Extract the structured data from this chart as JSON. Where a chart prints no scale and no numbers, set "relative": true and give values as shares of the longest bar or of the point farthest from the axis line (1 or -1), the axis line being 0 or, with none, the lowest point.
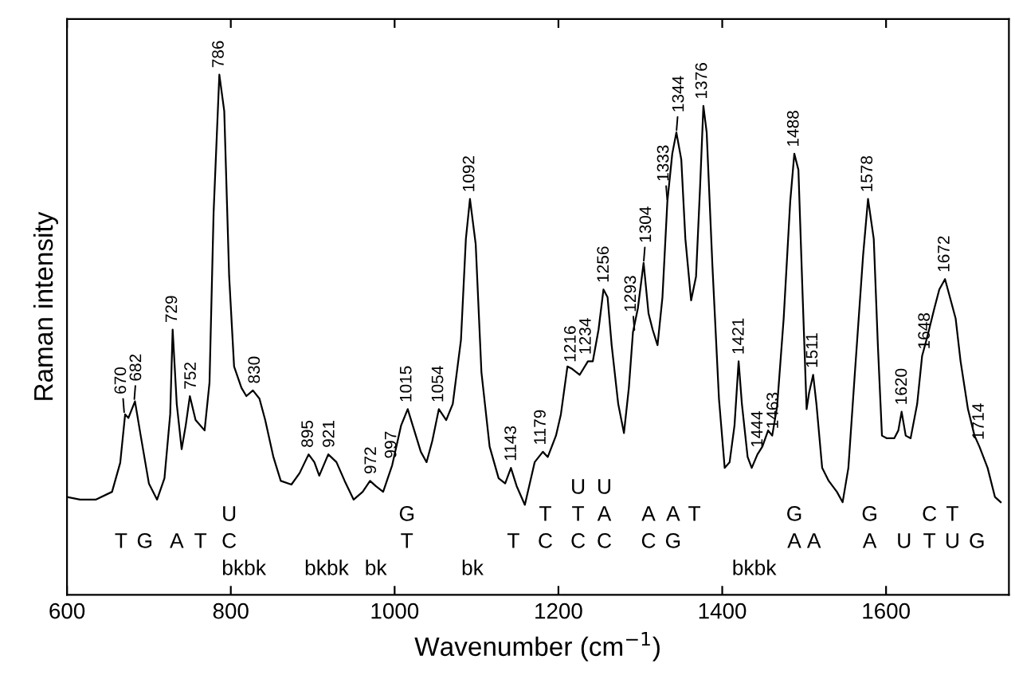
{
  "chart_data": {
    "type": "line",
    "relative": true,
    "color": "#000000",
    "xlabel": "Wavenumber (cm$^{−1}$)",
    "ylabel": "Raman intensity",
    "xlim": [
      600,
      1750
    ],
    "xticks": [
      600,
      800,
      1000,
      1200,
      1400,
      1600
    ],
    "x": [
      600,
      616,
      635,
      655,
      665,
      671,
      675,
      683,
      690,
      700,
      710,
      719,
      726,
      729,
      734,
      740,
      745,
      750,
      757,
      768,
      774,
      779,
      786,
      792,
      798,
      804,
      813,
      819,
      827,
      835,
      842,
      852,
      861,
      874,
      884,
      895,
      902,
      908,
      919,
      929,
      939,
      950,
      961,
      970,
      977,
      986,
      997,
      1008,
      1016,
      1024,
      1032,
      1039,
      1046,
      1054,
      1063,
      1071,
      1081,
      1087,
      1092,
      1099,
      1106,
      1116,
      1127,
      1135,
      1142,
      1149,
      1159,
      1171,
      1181,
      1187,
      1197,
      1203,
      1211,
      1217,
      1226,
      1236,
      1242,
      1249,
      1255,
      1260,
      1265,
      1273,
      1280,
      1286,
      1291,
      1297,
      1304,
      1310,
      1315,
      1321,
      1327,
      1333,
      1339,
      1344,
      1350,
      1355,
      1362,
      1368,
      1373,
      1377,
      1381,
      1388,
      1396,
      1403,
      1409,
      1415,
      1420,
      1424,
      1431,
      1436,
      1443,
      1449,
      1456,
      1461,
      1467,
      1475,
      1483,
      1488,
      1493,
      1498,
      1503,
      1506,
      1511,
      1515,
      1522,
      1530,
      1540,
      1547,
      1554,
      1562,
      1572,
      1578,
      1585,
      1590,
      1595,
      1601,
      1610,
      1615,
      1619,
      1624,
      1630,
      1638,
      1644,
      1651,
      1659,
      1665,
      1672,
      1678,
      1685,
      1691,
      1700,
      1708,
      1714,
      1724,
      1733,
      1740
    ],
    "values": [
      0.188,
      0.183,
      0.183,
      0.198,
      0.254,
      0.347,
      0.34,
      0.372,
      0.306,
      0.214,
      0.183,
      0.224,
      0.347,
      0.51,
      0.367,
      0.28,
      0.326,
      0.382,
      0.336,
      0.316,
      0.408,
      0.735,
      1.0,
      0.93,
      0.612,
      0.439,
      0.398,
      0.382,
      0.393,
      0.377,
      0.336,
      0.265,
      0.219,
      0.212,
      0.234,
      0.27,
      0.255,
      0.229,
      0.27,
      0.255,
      0.219,
      0.183,
      0.198,
      0.219,
      0.209,
      0.198,
      0.249,
      0.326,
      0.357,
      0.316,
      0.275,
      0.255,
      0.296,
      0.357,
      0.336,
      0.367,
      0.49,
      0.684,
      0.761,
      0.674,
      0.428,
      0.285,
      0.224,
      0.214,
      0.244,
      0.209,
      0.173,
      0.255,
      0.275,
      0.265,
      0.306,
      0.347,
      0.439,
      0.434,
      0.423,
      0.449,
      0.449,
      0.51,
      0.587,
      0.572,
      0.48,
      0.367,
      0.311,
      0.398,
      0.505,
      0.551,
      0.638,
      0.541,
      0.51,
      0.48,
      0.572,
      0.756,
      0.848,
      0.889,
      0.837,
      0.684,
      0.566,
      0.612,
      0.786,
      0.94,
      0.889,
      0.633,
      0.377,
      0.244,
      0.255,
      0.326,
      0.449,
      0.367,
      0.265,
      0.244,
      0.27,
      0.285,
      0.316,
      0.306,
      0.362,
      0.531,
      0.756,
      0.848,
      0.817,
      0.582,
      0.357,
      0.388,
      0.423,
      0.367,
      0.244,
      0.219,
      0.198,
      0.178,
      0.244,
      0.428,
      0.653,
      0.761,
      0.684,
      0.48,
      0.306,
      0.301,
      0.301,
      0.316,
      0.352,
      0.306,
      0.301,
      0.367,
      0.459,
      0.5,
      0.551,
      0.587,
      0.607,
      0.572,
      0.531,
      0.449,
      0.357,
      0.306,
      0.285,
      0.244,
      0.188,
      0.178
    ],
    "annotations": [
      {
        "text": "670",
        "x": 670,
        "y": 0.347
      },
      {
        "text": "682",
        "x": 682,
        "y": 0.372
      },
      {
        "text": "729",
        "x": 729,
        "y": 0.51
      },
      {
        "text": "752",
        "x": 752,
        "y": 0.382
      },
      {
        "text": "786",
        "x": 786,
        "y": 1.0
      },
      {
        "text": "830",
        "x": 830,
        "y": 0.393
      },
      {
        "text": "895",
        "x": 895,
        "y": 0.27
      },
      {
        "text": "921",
        "x": 921,
        "y": 0.27
      },
      {
        "text": "972",
        "x": 972,
        "y": 0.219
      },
      {
        "text": "997",
        "x": 997,
        "y": 0.249
      },
      {
        "text": "1015",
        "x": 1015,
        "y": 0.357
      },
      {
        "text": "1054",
        "x": 1054,
        "y": 0.357
      },
      {
        "text": "1092",
        "x": 1092,
        "y": 0.761
      },
      {
        "text": "1143",
        "x": 1143,
        "y": 0.244
      },
      {
        "text": "1179",
        "x": 1179,
        "y": 0.275
      },
      {
        "text": "1216",
        "x": 1216,
        "y": 0.434
      },
      {
        "text": "1234",
        "x": 1234,
        "y": 0.449
      },
      {
        "text": "1256",
        "x": 1256,
        "y": 0.587
      },
      {
        "text": "1293",
        "x": 1293,
        "y": 0.505
      },
      {
        "text": "1304",
        "x": 1304,
        "y": 0.638
      },
      {
        "text": "1333",
        "x": 1333,
        "y": 0.756
      },
      {
        "text": "1344",
        "x": 1344,
        "y": 0.889
      },
      {
        "text": "1376",
        "x": 1376,
        "y": 0.94
      },
      {
        "text": "1421",
        "x": 1421,
        "y": 0.449
      },
      {
        "text": "1444",
        "x": 1444,
        "y": 0.27
      },
      {
        "text": "1463",
        "x": 1463,
        "y": 0.306
      },
      {
        "text": "1488",
        "x": 1488,
        "y": 0.848
      },
      {
        "text": "1511",
        "x": 1511,
        "y": 0.423
      },
      {
        "text": "1578",
        "x": 1578,
        "y": 0.761
      },
      {
        "text": "1620",
        "x": 1620,
        "y": 0.352
      },
      {
        "text": "1648",
        "x": 1648,
        "y": 0.459
      },
      {
        "text": "1672",
        "x": 1672,
        "y": 0.607
      },
      {
        "text": "1714",
        "x": 1714,
        "y": 0.285
      },
      "U",
      "U",
      "U",
      "G",
      "T",
      "T",
      "A",
      "A",
      "A",
      "T",
      "G",
      "G",
      "C",
      "T",
      "T",
      "G",
      "A",
      "T",
      "C",
      "T",
      "T",
      "C",
      "C",
      "C",
      "C",
      "G",
      "A",
      "A",
      "A",
      "U",
      "T",
      "U",
      "G",
      "bkbk",
      "bkbk",
      "bk",
      "bk",
      "bkbk"
    ]
  }
}
